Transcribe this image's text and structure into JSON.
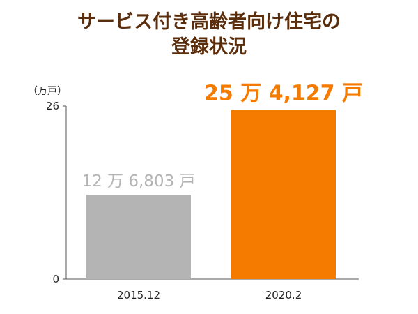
{
  "title_line1": "サービス付き高齢者向け住宅の",
  "title_line2": "登録状況",
  "colors": {
    "title": "#5a2d0c",
    "bar_2015": "#b4b4b4",
    "bar_2020": "#f57a00",
    "axis": "#555555"
  },
  "chart_data": {
    "type": "bar",
    "categories": [
      "2015.12",
      "2020.2"
    ],
    "values": [
      12.6803,
      25.4127
    ],
    "data_labels": [
      "12 万 6,803 戸",
      "25 万 4,127 戸"
    ],
    "ylabel": "（万戸）",
    "ylim": [
      0,
      26
    ],
    "y_ticks": [
      "0",
      "26"
    ],
    "grid": false,
    "legend": "none"
  }
}
